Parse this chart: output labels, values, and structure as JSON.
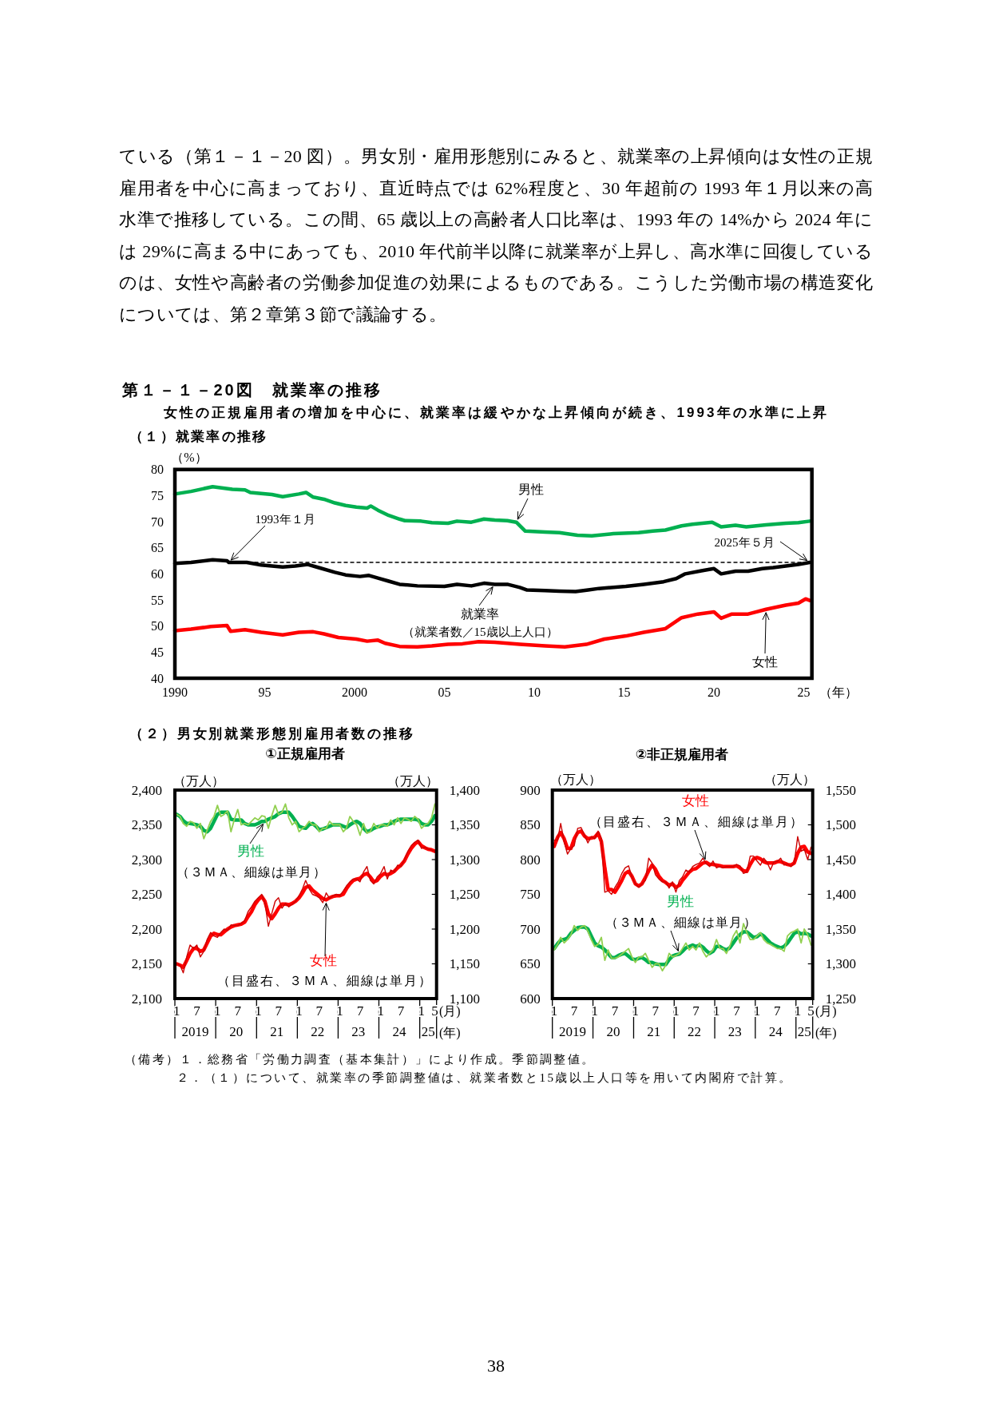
{
  "chart_data": [
    {
      "type": "line",
      "title": "第１－１－20図　就業率の推移",
      "subtitle": "女性の正規雇用者の増加を中心に、就業率は緩やかな上昇傾向が続き、1993年の水準に上昇",
      "xlabel": "（年）",
      "ylabel": "（%）",
      "xlim": [
        1990,
        2025.45
      ],
      "xticks": [
        1990,
        {
          "value": 1995,
          "label": "95"
        },
        2000,
        {
          "value": 2005,
          "label": "05"
        },
        {
          "value": 2010,
          "label": "10"
        },
        {
          "value": 2015,
          "label": "15"
        },
        {
          "value": 2020,
          "label": "20"
        },
        {
          "value": 2025,
          "label": "25"
        }
      ],
      "ylim": [
        40,
        80
      ],
      "yticks": [
        40,
        45,
        50,
        55,
        60,
        65,
        70,
        75,
        80
      ],
      "annotations": [
        "ている（第１－１－20 図）。男女別・雇用形態別にみると、就業率の上昇傾向は女性の正規雇用者を中心に高まっており、直近時点では 62%程度と、30 年超前の 1993 年１月以来の高水準で推移している。この間、65 歳以上の高齢者人口比率は、1993 年の 14%から 2024 年には 29%に高まる中にあっても、2010 年代前半以降に就業率が上昇し、高水準に回復しているのは、女性や高齢者の労働参加促進の効果によるものである。こうした労働市場の構造変化については、第２章第３節で議論する。",
        "（１）就業率の推移",
        {
          "text": "1993年１月",
          "x": 1993,
          "y": 62.2
        },
        {
          "text": "2025年５月",
          "x": 2025.33,
          "y": 62.2
        },
        "（就業者数／15歳以上人口）"
      ],
      "series": [
        {
          "name": "男性",
          "color": "#00b050",
          "x": [
            1990.0,
            1990.9,
            1992.1,
            1993.2,
            1993.9,
            1994.2,
            1995.4,
            1996.0,
            1996.9,
            1997.3,
            1997.7,
            1998.3,
            1998.9,
            1999.5,
            2000.1,
            2000.7,
            2000.9,
            2001.3,
            2001.9,
            2002.5,
            2002.8,
            2003.7,
            2004.3,
            2005.2,
            2005.7,
            2006.5,
            2007.2,
            2007.8,
            2008.5,
            2009.0,
            2009.5,
            2010.6,
            2011.4,
            2012.4,
            2013.2,
            2014.4,
            2015.8,
            2016.6,
            2017.3,
            2018.2,
            2018.8,
            2019.9,
            2020.4,
            2021.2,
            2021.8,
            2022.9,
            2024.0,
            2024.7,
            2025.33
          ],
          "values": [
            75.3,
            75.8,
            76.7,
            76.2,
            76.1,
            75.6,
            75.2,
            74.8,
            75.3,
            75.6,
            74.7,
            74.3,
            73.6,
            73.1,
            72.8,
            72.6,
            73.0,
            72.2,
            71.2,
            70.5,
            70.2,
            70.1,
            69.8,
            69.7,
            70.1,
            69.9,
            70.5,
            70.3,
            70.2,
            69.9,
            68.2,
            68.0,
            67.9,
            67.4,
            67.3,
            67.7,
            67.9,
            68.2,
            68.4,
            69.2,
            69.5,
            69.9,
            69.0,
            69.3,
            69.0,
            69.4,
            69.7,
            69.8,
            70.1
          ]
        },
        {
          "name": "就業率",
          "color": "#000000",
          "x": [
            1990.0,
            1990.9,
            1992.1,
            1992.9,
            1993.0,
            1994.0,
            1994.8,
            1996.0,
            1996.7,
            1997.4,
            1998.0,
            1998.9,
            1999.5,
            2000.3,
            2000.8,
            2001.3,
            2001.9,
            2002.5,
            2003.5,
            2005.0,
            2005.7,
            2006.5,
            2007.2,
            2007.8,
            2008.5,
            2009.2,
            2009.6,
            2010.6,
            2011.4,
            2012.3,
            2013.0,
            2013.6,
            2015.1,
            2016.1,
            2017.2,
            2017.9,
            2018.4,
            2019.3,
            2020.0,
            2020.4,
            2021.2,
            2021.9,
            2022.7,
            2023.3,
            2024.0,
            2024.7,
            2025.33
          ],
          "values": [
            62.0,
            62.2,
            62.7,
            62.5,
            62.2,
            62.2,
            61.7,
            61.3,
            61.5,
            61.8,
            61.2,
            60.3,
            59.8,
            59.5,
            59.7,
            59.2,
            58.6,
            58.0,
            57.7,
            57.6,
            58.0,
            57.7,
            58.2,
            58.0,
            58.0,
            57.4,
            56.9,
            56.8,
            56.7,
            56.6,
            56.9,
            57.2,
            57.6,
            58.0,
            58.5,
            59.1,
            60.0,
            60.6,
            61.0,
            60.0,
            60.5,
            60.5,
            61.0,
            61.2,
            61.5,
            61.8,
            62.2
          ]
        },
        {
          "name": "女性",
          "color": "#ff0000",
          "x": [
            1990.0,
            1990.9,
            1992.0,
            1992.9,
            1993.1,
            1993.9,
            1994.8,
            1996.0,
            1996.9,
            1997.7,
            1998.3,
            1999.1,
            2000.1,
            2000.7,
            2001.3,
            2001.7,
            2002.5,
            2003.5,
            2004.3,
            2005.2,
            2006.0,
            2006.9,
            2007.8,
            2009.2,
            2010.6,
            2011.7,
            2012.9,
            2013.9,
            2015.1,
            2016.1,
            2017.3,
            2018.2,
            2019.1,
            2020.0,
            2020.4,
            2021.0,
            2021.9,
            2022.9,
            2024.0,
            2024.7,
            2025.1,
            2025.33
          ],
          "values": [
            49.1,
            49.4,
            49.9,
            50.1,
            49.0,
            49.3,
            48.8,
            48.3,
            48.8,
            48.9,
            48.5,
            47.8,
            47.5,
            47.1,
            47.3,
            46.7,
            46.1,
            46.0,
            46.2,
            46.5,
            46.6,
            47.0,
            46.9,
            46.5,
            46.2,
            46.0,
            46.5,
            47.5,
            48.1,
            48.8,
            49.5,
            51.6,
            52.3,
            52.7,
            51.5,
            52.3,
            52.3,
            53.2,
            54.0,
            54.4,
            55.2,
            54.9
          ]
        },
        {
          "color": "#000000",
          "line_style": "dashed",
          "x": [
            1993,
            2025.45
          ],
          "values": [
            62.2,
            62.2
          ]
        }
      ]
    },
    {
      "type": "line",
      "title": "①正規雇用者",
      "xlabel": "(月)",
      "x2label": "(年)",
      "ylabel": "（万人）",
      "y2label": "（万人）",
      "x": [
        "2019-01",
        "2019-02",
        "2019-03",
        "2019-04",
        "2019-05",
        "2019-06",
        "2019-07",
        "2019-08",
        "2019-09",
        "2019-10",
        "2019-11",
        "2019-12",
        "2020-01",
        "2020-02",
        "2020-03",
        "2020-04",
        "2020-05",
        "2020-06",
        "2020-07",
        "2020-08",
        "2020-09",
        "2020-10",
        "2020-11",
        "2020-12",
        "2021-01",
        "2021-02",
        "2021-03",
        "2021-04",
        "2021-05",
        "2021-06",
        "2021-07",
        "2021-08",
        "2021-09",
        "2021-10",
        "2021-11",
        "2021-12",
        "2022-01",
        "2022-02",
        "2022-03",
        "2022-04",
        "2022-05",
        "2022-06",
        "2022-07",
        "2022-08",
        "2022-09",
        "2022-10",
        "2022-11",
        "2022-12",
        "2023-01",
        "2023-02",
        "2023-03",
        "2023-04",
        "2023-05",
        "2023-06",
        "2023-07",
        "2023-08",
        "2023-09",
        "2023-10",
        "2023-11",
        "2023-12",
        "2024-01",
        "2024-02",
        "2024-03",
        "2024-04",
        "2024-05",
        "2024-06",
        "2024-07",
        "2024-08",
        "2024-09",
        "2024-10",
        "2024-11",
        "2024-12",
        "2025-01",
        "2025-02",
        "2025-03",
        "2025-04",
        "2025-05"
      ],
      "xlim": [
        "2018-12-16",
        "2025-05-16"
      ],
      "xticks": [
        {
          "value": "2019-01",
          "label": "1"
        },
        {
          "value": "2019-07",
          "label": "7"
        },
        {
          "value": "2020-01",
          "label": "1"
        },
        {
          "value": "2020-07",
          "label": "7"
        },
        {
          "value": "2021-01",
          "label": "1"
        },
        {
          "value": "2021-07",
          "label": "7"
        },
        {
          "value": "2022-01",
          "label": "1"
        },
        {
          "value": "2022-07",
          "label": "7"
        },
        {
          "value": "2023-01",
          "label": "1"
        },
        {
          "value": "2023-07",
          "label": "7"
        },
        {
          "value": "2024-01",
          "label": "1"
        },
        {
          "value": "2024-07",
          "label": "7"
        },
        {
          "value": "2025-01",
          "label": "1"
        },
        {
          "value": "2025-05",
          "label": "5"
        }
      ],
      "x2lim": [
        "2018-12-16",
        "2025-05-16"
      ],
      "x2ticks": [
        {
          "value": "2019-06-16",
          "label": "2019"
        },
        {
          "value": "2020-06-16",
          "label": "20"
        },
        {
          "value": "2021-06-16",
          "label": "21"
        },
        {
          "value": "2022-06-16",
          "label": "22"
        },
        {
          "value": "2023-06-16",
          "label": "23"
        },
        {
          "value": "2024-06-16",
          "label": "24"
        },
        {
          "value": "2025-03-02",
          "label": "25"
        }
      ],
      "ylim": [
        2100,
        2400
      ],
      "yticks": [
        {
          "value": 2100,
          "label": "2,100"
        },
        {
          "value": 2150,
          "label": "2,150"
        },
        {
          "value": 2200,
          "label": "2,200"
        },
        {
          "value": 2250,
          "label": "2,250"
        },
        {
          "value": 2300,
          "label": "2,300"
        },
        {
          "value": 2350,
          "label": "2,350"
        },
        {
          "value": 2400,
          "label": "2,400"
        }
      ],
      "y2lim": [
        1100,
        1400
      ],
      "y2ticks": [
        {
          "value": 1100,
          "label": "1,100"
        },
        {
          "value": 1150,
          "label": "1,150"
        },
        {
          "value": 1200,
          "label": "1,200"
        },
        {
          "value": 1250,
          "label": "1,250"
        },
        {
          "value": 1300,
          "label": "1,300"
        },
        {
          "value": 1350,
          "label": "1,350"
        },
        {
          "value": 1400,
          "label": "1,400"
        }
      ],
      "annotations": [
        "（２）男女別就業形態別雇用者数の推移",
        "（３ＭＡ、細線は単月）",
        "（目盛右、３ＭＡ、細線は単月）"
      ],
      "series": [
        {
          "name": "男性",
          "color": "#00b050",
          "values": [
            2365,
            2362,
            2356,
            2352,
            2352,
            2351,
            2350,
            2348,
            2342,
            2340,
            2345,
            2355,
            2365,
            2368,
            2368,
            2368,
            2358,
            2357,
            2357,
            2357,
            2352,
            2350,
            2350,
            2350,
            2352,
            2355,
            2355,
            2358,
            2360,
            2362,
            2366,
            2368,
            2368,
            2368,
            2362,
            2355,
            2348,
            2346,
            2345,
            2350,
            2352,
            2348,
            2343,
            2344,
            2346,
            2348,
            2350,
            2350,
            2350,
            2348,
            2346,
            2350,
            2353,
            2355,
            2352,
            2345,
            2340,
            2342,
            2345,
            2347,
            2348,
            2350,
            2350,
            2352,
            2355,
            2357,
            2358,
            2358,
            2358,
            2358,
            2358,
            2357,
            2352,
            2350,
            2350,
            2355,
            2363
          ]
        },
        {
          "color": "#92d050",
          "values": [
            2365,
            2362,
            2352,
            2348,
            2355,
            2353,
            2345,
            2352,
            2330,
            2342,
            2355,
            2362,
            2378,
            2362,
            2365,
            2370,
            2340,
            2358,
            2372,
            2350,
            2352,
            2350,
            2355,
            2360,
            2357,
            2363,
            2362,
            2345,
            2363,
            2378,
            2365,
            2368,
            2380,
            2360,
            2350,
            2355,
            2340,
            2345,
            2348,
            2355,
            2350,
            2350,
            2340,
            2345,
            2345,
            2355,
            2350,
            2350,
            2350,
            2340,
            2345,
            2362,
            2355,
            2350,
            2335,
            2352,
            2338,
            2340,
            2352,
            2345,
            2350,
            2350,
            2348,
            2357,
            2350,
            2360,
            2352,
            2360,
            2358,
            2355,
            2362,
            2358,
            2345,
            2350,
            2352,
            2360,
            2380
          ]
        },
        {
          "name": "女性",
          "color": "#ff0000",
          "axis": "y2",
          "values": [
            1150,
            1148,
            1145,
            1155,
            1165,
            1172,
            1172,
            1168,
            1170,
            1180,
            1190,
            1194,
            1192,
            1192,
            1196,
            1200,
            1203,
            1205,
            1206,
            1207,
            1210,
            1218,
            1225,
            1235,
            1242,
            1247,
            1240,
            1222,
            1215,
            1222,
            1230,
            1236,
            1236,
            1235,
            1237,
            1240,
            1245,
            1252,
            1260,
            1262,
            1256,
            1252,
            1248,
            1244,
            1242,
            1245,
            1247,
            1248,
            1248,
            1250,
            1258,
            1265,
            1270,
            1272,
            1273,
            1278,
            1280,
            1275,
            1268,
            1270,
            1276,
            1280,
            1278,
            1280,
            1283,
            1288,
            1292,
            1298,
            1308,
            1316,
            1322,
            1326,
            1320,
            1317,
            1315,
            1314,
            1312
          ]
        },
        {
          "color": "#cc0000",
          "axis": "y2",
          "values": [
            1150,
            1148,
            1137,
            1160,
            1177,
            1172,
            1177,
            1160,
            1168,
            1185,
            1195,
            1190,
            1188,
            1195,
            1200,
            1198,
            1206,
            1205,
            1205,
            1208,
            1212,
            1225,
            1232,
            1240,
            1245,
            1250,
            1238,
            1204,
            1222,
            1240,
            1245,
            1230,
            1237,
            1232,
            1236,
            1240,
            1248,
            1258,
            1270,
            1258,
            1250,
            1248,
            1245,
            1238,
            1252,
            1244,
            1248,
            1250,
            1248,
            1255,
            1262,
            1268,
            1272,
            1272,
            1268,
            1282,
            1290,
            1270,
            1265,
            1275,
            1280,
            1290,
            1272,
            1285,
            1282,
            1292,
            1290,
            1300,
            1312,
            1320,
            1325,
            1328,
            1316,
            1318,
            1315,
            1314,
            1312
          ]
        }
      ]
    },
    {
      "type": "line",
      "title": "②非正規雇用者",
      "xlabel": "(月)",
      "x2label": "(年)",
      "ylabel": "（万人）",
      "y2label": "（万人）",
      "x": [
        "2019-01",
        "2019-02",
        "2019-03",
        "2019-04",
        "2019-05",
        "2019-06",
        "2019-07",
        "2019-08",
        "2019-09",
        "2019-10",
        "2019-11",
        "2019-12",
        "2020-01",
        "2020-02",
        "2020-03",
        "2020-04",
        "2020-05",
        "2020-06",
        "2020-07",
        "2020-08",
        "2020-09",
        "2020-10",
        "2020-11",
        "2020-12",
        "2021-01",
        "2021-02",
        "2021-03",
        "2021-04",
        "2021-05",
        "2021-06",
        "2021-07",
        "2021-08",
        "2021-09",
        "2021-10",
        "2021-11",
        "2021-12",
        "2022-01",
        "2022-02",
        "2022-03",
        "2022-04",
        "2022-05",
        "2022-06",
        "2022-07",
        "2022-08",
        "2022-09",
        "2022-10",
        "2022-11",
        "2022-12",
        "2023-01",
        "2023-02",
        "2023-03",
        "2023-04",
        "2023-05",
        "2023-06",
        "2023-07",
        "2023-08",
        "2023-09",
        "2023-10",
        "2023-11",
        "2023-12",
        "2024-01",
        "2024-02",
        "2024-03",
        "2024-04",
        "2024-05",
        "2024-06",
        "2024-07",
        "2024-08",
        "2024-09",
        "2024-10",
        "2024-11",
        "2024-12",
        "2025-01",
        "2025-02",
        "2025-03",
        "2025-04",
        "2025-05"
      ],
      "xlim": [
        "2018-12-16",
        "2025-05-16"
      ],
      "xticks": [
        {
          "value": "2019-01",
          "label": "1"
        },
        {
          "value": "2019-07",
          "label": "7"
        },
        {
          "value": "2020-01",
          "label": "1"
        },
        {
          "value": "2020-07",
          "label": "7"
        },
        {
          "value": "2021-01",
          "label": "1"
        },
        {
          "value": "2021-07",
          "label": "7"
        },
        {
          "value": "2022-01",
          "label": "1"
        },
        {
          "value": "2022-07",
          "label": "7"
        },
        {
          "value": "2023-01",
          "label": "1"
        },
        {
          "value": "2023-07",
          "label": "7"
        },
        {
          "value": "2024-01",
          "label": "1"
        },
        {
          "value": "2024-07",
          "label": "7"
        },
        {
          "value": "2025-01",
          "label": "1"
        },
        {
          "value": "2025-05",
          "label": "5"
        }
      ],
      "x2lim": [
        "2018-12-16",
        "2025-05-16"
      ],
      "x2ticks": [
        {
          "value": "2019-06-16",
          "label": "2019"
        },
        {
          "value": "2020-06-16",
          "label": "20"
        },
        {
          "value": "2021-06-16",
          "label": "21"
        },
        {
          "value": "2022-06-16",
          "label": "22"
        },
        {
          "value": "2023-06-16",
          "label": "23"
        },
        {
          "value": "2024-06-16",
          "label": "24"
        },
        {
          "value": "2025-03-02",
          "label": "25"
        }
      ],
      "ylim": [
        600,
        900
      ],
      "yticks": [
        600,
        650,
        700,
        750,
        800,
        850,
        900
      ],
      "y2lim": [
        1250,
        1550
      ],
      "y2ticks": [
        {
          "value": 1250,
          "label": "1,250"
        },
        {
          "value": 1300,
          "label": "1,300"
        },
        {
          "value": 1350,
          "label": "1,350"
        },
        {
          "value": 1400,
          "label": "1,400"
        },
        {
          "value": 1450,
          "label": "1,450"
        },
        {
          "value": 1500,
          "label": "1,500"
        },
        {
          "value": 1550,
          "label": "1,550"
        }
      ],
      "annotations": [
        "（目盛右、３ＭＡ、細線は単月）",
        "（３ＭＡ、細線は単月）",
        "（備考）１．総務省「労働力調査（基本集計）」により作成。季節調整値。",
        "２．（１）について、就業率の季節調整値は、就業者数と15歳以上人口等を用いて内閣府で計算。",
        "38"
      ],
      "series": [
        {
          "name": "男性",
          "color": "#00b050",
          "values": [
            672,
            679,
            684,
            685,
            687,
            694,
            698,
            702,
            703,
            703,
            700,
            690,
            680,
            676,
            674,
            670,
            665,
            659,
            659,
            662,
            664,
            665,
            661,
            657,
            656,
            658,
            659,
            656,
            652,
            652,
            650,
            649,
            649,
            649,
            656,
            661,
            663,
            664,
            668,
            673,
            675,
            677,
            675,
            677,
            674,
            669,
            665,
            668,
            675,
            675,
            672,
            670,
            673,
            680,
            687,
            692,
            696,
            696,
            692,
            688,
            689,
            693,
            690,
            685,
            680,
            677,
            675,
            673,
            675,
            680,
            687,
            694,
            696,
            693,
            694,
            693,
            690
          ]
        },
        {
          "color": "#92d050",
          "values": [
            670,
            678,
            688,
            680,
            685,
            692,
            705,
            698,
            703,
            705,
            697,
            685,
            675,
            678,
            688,
            655,
            670,
            658,
            658,
            660,
            664,
            668,
            672,
            660,
            652,
            660,
            660,
            665,
            655,
            645,
            650,
            650,
            640,
            648,
            665,
            660,
            662,
            665,
            672,
            680,
            670,
            675,
            670,
            680,
            668,
            660,
            665,
            670,
            685,
            672,
            672,
            665,
            675,
            690,
            698,
            680,
            708,
            695,
            685,
            685,
            690,
            695,
            685,
            680,
            678,
            675,
            672,
            672,
            668,
            690,
            695,
            697,
            700,
            680,
            700,
            692,
            677
          ]
        },
        {
          "name": "女性",
          "color": "#ff0000",
          "axis": "y2",
          "values": [
            1469,
            1482,
            1489,
            1480,
            1466,
            1466,
            1480,
            1489,
            1491,
            1484,
            1480,
            1481,
            1482,
            1488,
            1476,
            1438,
            1407,
            1407,
            1403,
            1411,
            1420,
            1430,
            1433,
            1426,
            1415,
            1412,
            1415,
            1424,
            1434,
            1442,
            1436,
            1426,
            1420,
            1417,
            1413,
            1415,
            1410,
            1413,
            1420,
            1426,
            1432,
            1436,
            1437,
            1441,
            1445,
            1446,
            1443,
            1443,
            1442,
            1441,
            1440,
            1440,
            1440,
            1440,
            1441,
            1438,
            1434,
            1433,
            1443,
            1451,
            1453,
            1451,
            1447,
            1445,
            1445,
            1445,
            1447,
            1447,
            1445,
            1443,
            1442,
            1445,
            1459,
            1468,
            1469,
            1461,
            1459
          ]
        },
        {
          "color": "#cc0000",
          "axis": "y2",
          "values": [
            1478,
            1478,
            1502,
            1476,
            1458,
            1466,
            1470,
            1495,
            1496,
            1485,
            1474,
            1483,
            1480,
            1491,
            1480,
            1403,
            1405,
            1400,
            1410,
            1418,
            1430,
            1438,
            1441,
            1425,
            1415,
            1410,
            1415,
            1420,
            1452,
            1445,
            1428,
            1422,
            1418,
            1418,
            1409,
            1418,
            1403,
            1420,
            1425,
            1435,
            1432,
            1440,
            1443,
            1445,
            1452,
            1444,
            1440,
            1448,
            1438,
            1440,
            1438,
            1440,
            1440,
            1440,
            1443,
            1441,
            1430,
            1432,
            1455,
            1455,
            1448,
            1442,
            1452,
            1446,
            1435,
            1447,
            1447,
            1452,
            1442,
            1444,
            1440,
            1445,
            1483,
            1462,
            1465,
            1450,
            1468
          ]
        }
      ]
    }
  ]
}
